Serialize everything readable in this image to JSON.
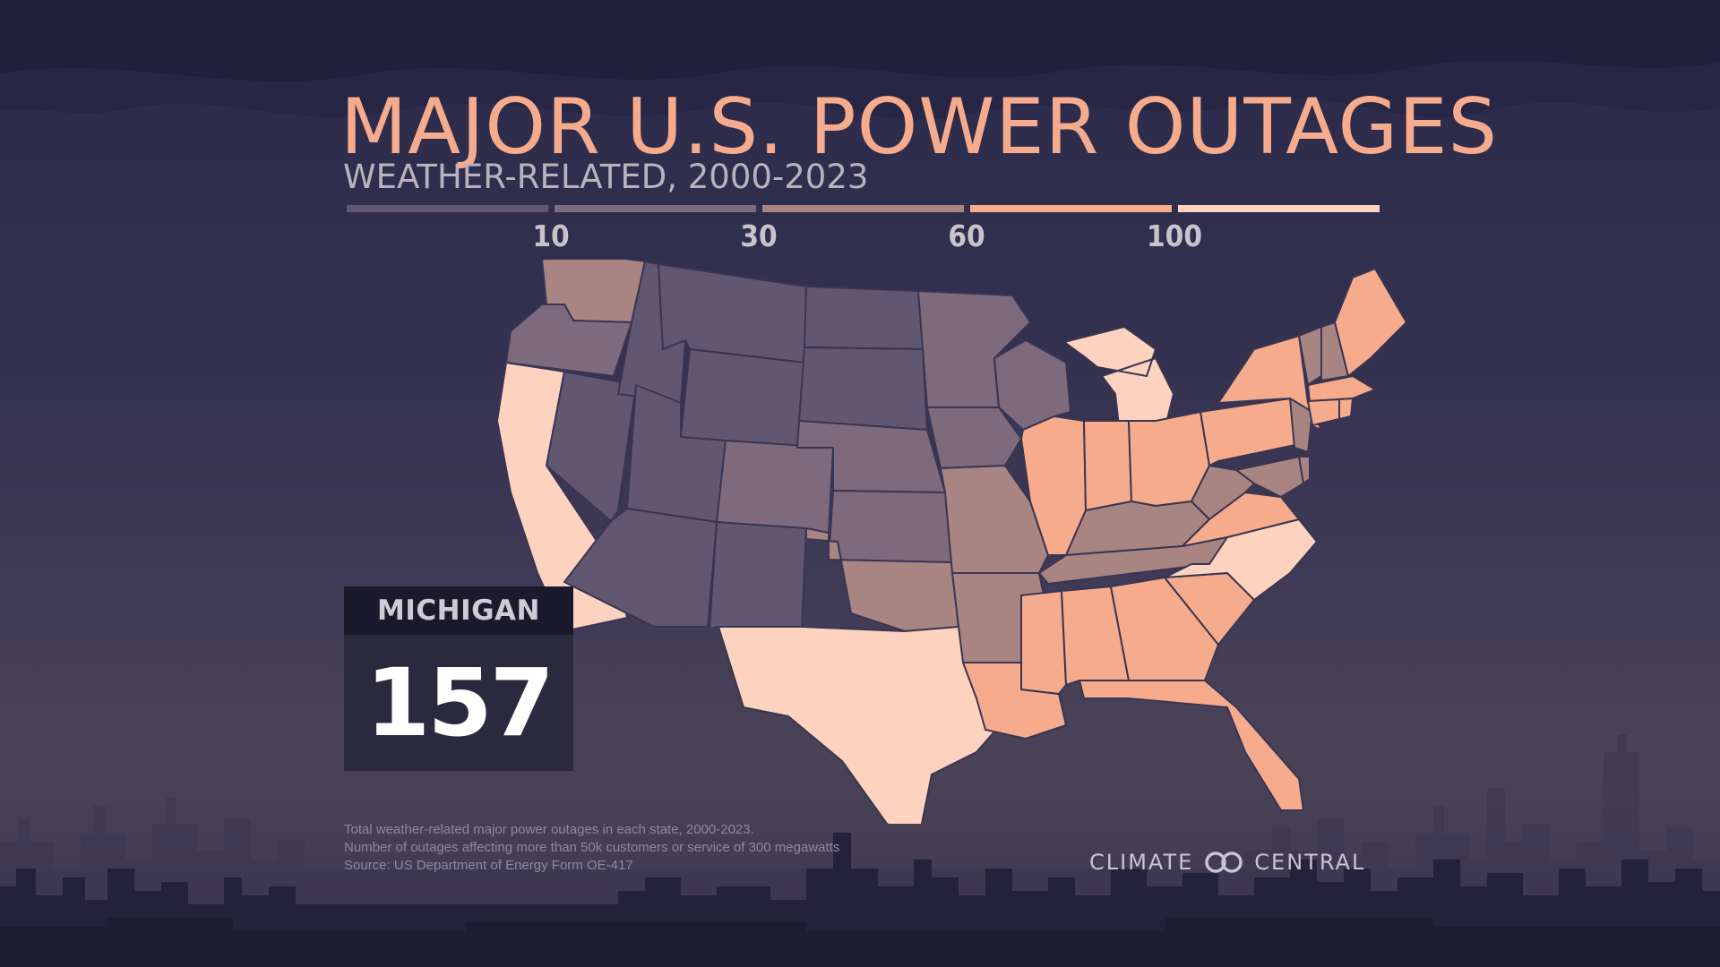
{
  "title": "MAJOR U.S. POWER OUTAGES",
  "subtitle": "WEATHER-RELATED, 2000-2023",
  "legend": {
    "ticks": [
      "10",
      "30",
      "60",
      "100"
    ],
    "colors": [
      "#625770",
      "#7e6a7d",
      "#a88583",
      "#f6ac8c",
      "#fdd3bf"
    ]
  },
  "infobox": {
    "state": "MICHIGAN",
    "value": "157"
  },
  "notes": [
    "Total weather-related major power outages in each state, 2000-2023.",
    "Number of outages affecting more than 50k customers or service of 300 megawatts",
    "Source: US Department of Energy Form OE-417"
  ],
  "brand": {
    "left": "CLIMATE",
    "right": "CENTRAL"
  },
  "map_data": {
    "selected": "MI",
    "bins": {
      "MT": 0,
      "WY": 0,
      "ID": 0,
      "NV": 0,
      "UT": 0,
      "AZ": 0,
      "NM": 0,
      "ND": 0,
      "SD": 0,
      "OR": 1,
      "NE": 1,
      "KS": 1,
      "CO": 1,
      "MN": 1,
      "IA": 1,
      "WI": 1,
      "WA": 2,
      "OK": 2,
      "MO": 2,
      "AR": 2,
      "KY": 2,
      "WV": 2,
      "TN": 2,
      "VT": 2,
      "NH": 2,
      "NJ": 2,
      "MD": 2,
      "DE": 2,
      "IL": 3,
      "IN": 3,
      "OH": 3,
      "PA": 3,
      "NY": 3,
      "VA": 3,
      "SC": 3,
      "GA": 3,
      "AL": 3,
      "MS": 3,
      "LA": 3,
      "FL": 3,
      "ME": 3,
      "MA": 3,
      "CT": 3,
      "RI": 3,
      "CA": 4,
      "TX": 4,
      "MI": 4,
      "NC": 4
    }
  }
}
